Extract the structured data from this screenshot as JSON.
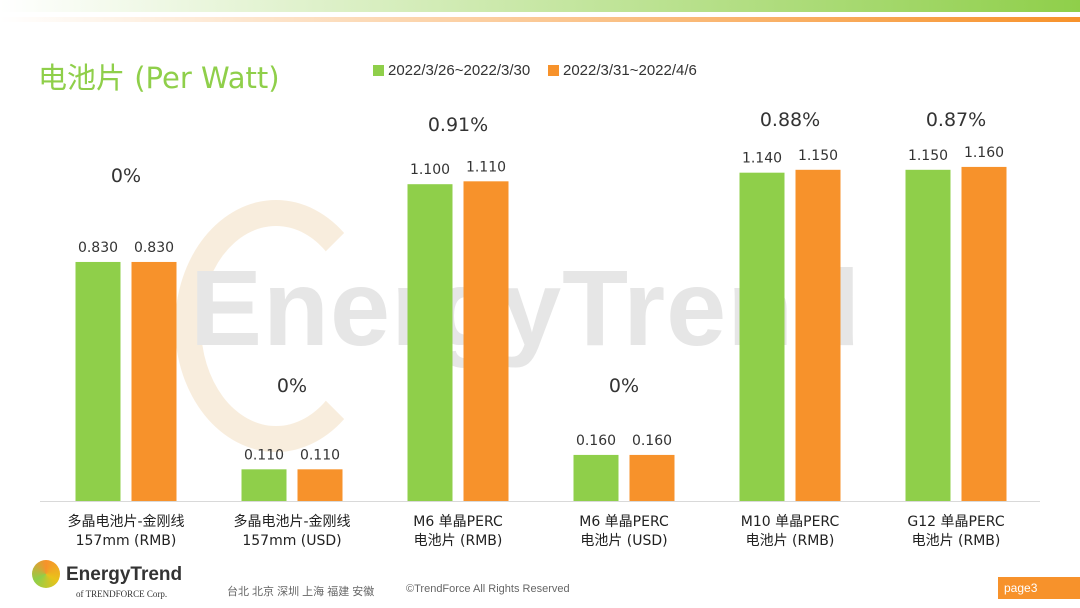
{
  "title": "电池片 (Per Watt)",
  "colors": {
    "series1": "#8fcf4a",
    "series2": "#f7922b"
  },
  "chart_data": {
    "type": "bar",
    "title": "电池片 (Per Watt)",
    "categories": [
      "多晶电池片-金刚线\n157mm (RMB)",
      "多晶电池片-金刚线\n157mm (USD)",
      "M6 单晶PERC\n电池片 (RMB)",
      "M6 单晶PERC\n电池片 (USD)",
      "M10 单晶PERC\n电池片 (RMB)",
      "G12 单晶PERC\n电池片 (RMB)"
    ],
    "series": [
      {
        "name": "2022/3/26~2022/3/30",
        "values": [
          0.83,
          0.11,
          1.1,
          0.16,
          1.14,
          1.15
        ]
      },
      {
        "name": "2022/3/31~2022/4/6",
        "values": [
          0.83,
          0.11,
          1.11,
          0.16,
          1.15,
          1.16
        ]
      }
    ],
    "data_labels": [
      [
        "0.830",
        "0.110",
        "1.100",
        "0.160",
        "1.140",
        "1.150"
      ],
      [
        "0.830",
        "0.110",
        "1.110",
        "0.160",
        "1.150",
        "1.160"
      ]
    ],
    "change_labels": [
      "0%",
      "0%",
      "0.91%",
      "0%",
      "0.88%",
      "0.87%"
    ],
    "legend_position": "top",
    "grid": false
  },
  "watermark": "EnergyTrend",
  "footer": {
    "logo_name": "EnergyTrend",
    "logo_sub": "of TRENDFORCE Corp.",
    "cities": "台北 北京 深圳 上海 福建 安徽",
    "copyright": "©TrendForce All Rights Reserved",
    "page": "page3"
  }
}
